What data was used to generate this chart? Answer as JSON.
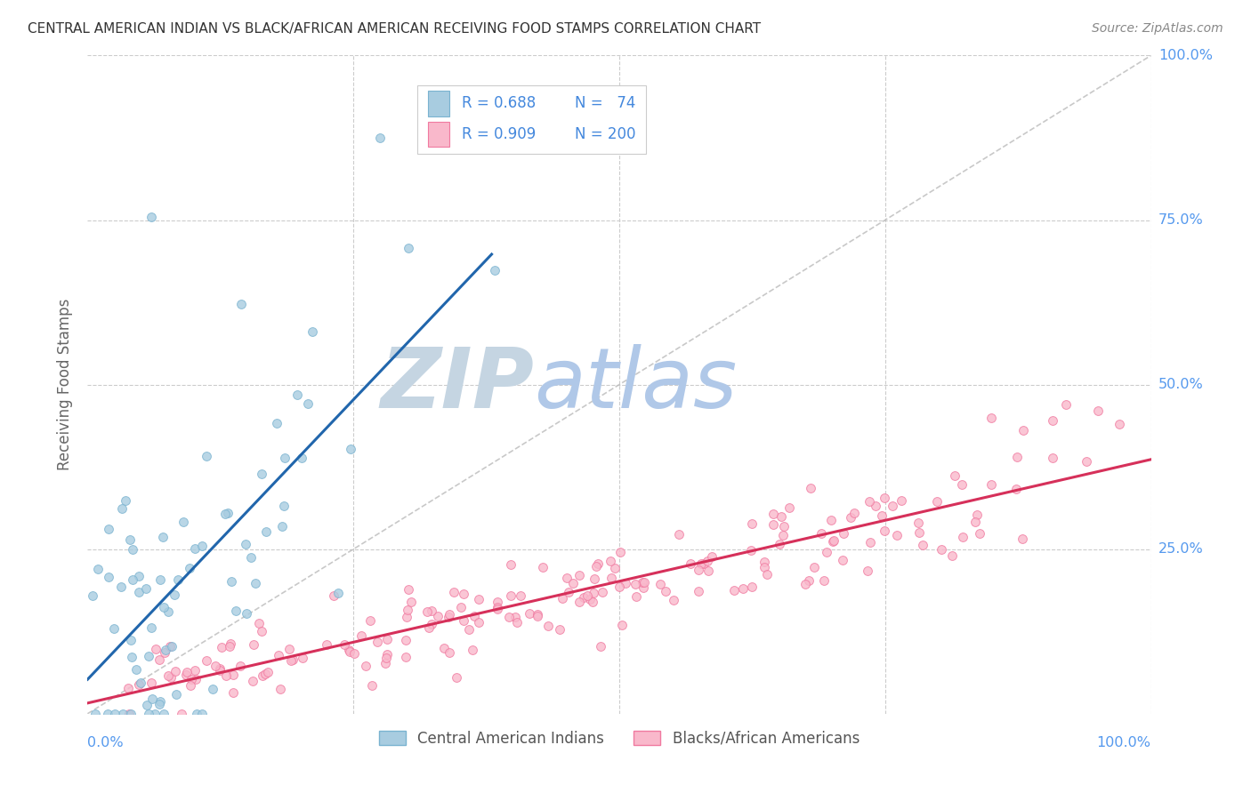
{
  "title": "CENTRAL AMERICAN INDIAN VS BLACK/AFRICAN AMERICAN RECEIVING FOOD STAMPS CORRELATION CHART",
  "source": "Source: ZipAtlas.com",
  "ylabel": "Receiving Food Stamps",
  "xlim": [
    0.0,
    1.0
  ],
  "ylim": [
    0.0,
    1.0
  ],
  "blue_R": 0.688,
  "blue_N": 74,
  "pink_R": 0.909,
  "pink_N": 200,
  "blue_scatter_color": "#a8cce0",
  "blue_edge_color": "#7ab3d0",
  "pink_scatter_color": "#f9b8cb",
  "pink_edge_color": "#f07aa0",
  "line_blue": "#2166ac",
  "line_pink": "#d6305a",
  "diagonal_color": "#bbbbbb",
  "grid_color": "#cccccc",
  "title_color": "#333333",
  "source_color": "#888888",
  "axis_label_color": "#5599ee",
  "background_color": "#ffffff",
  "legend_label_blue": "Central American Indians",
  "legend_label_pink": "Blacks/African Americans",
  "legend_text_color": "#4488dd",
  "watermark_zip_color": "#c8d8e8",
  "watermark_atlas_color": "#b8cce8"
}
